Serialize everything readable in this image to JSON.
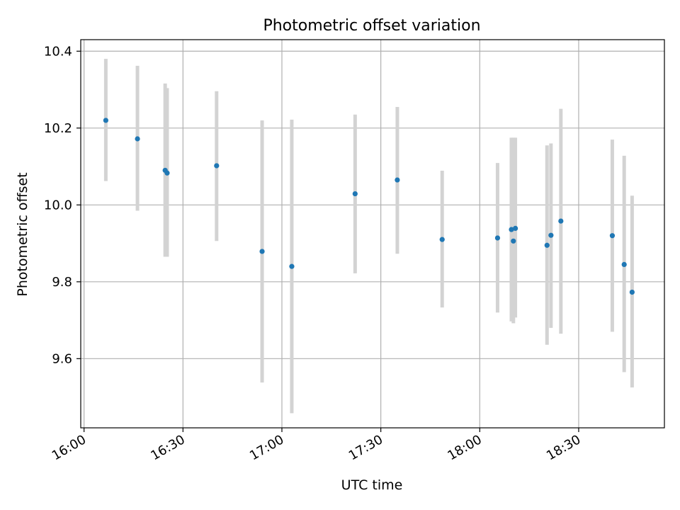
{
  "chart_data": {
    "type": "scatter",
    "title": "Photometric offset variation",
    "xlabel": "UTC time",
    "ylabel": "Photometric offset",
    "x_axis_type": "time",
    "xlim": [
      "15:59",
      "18:56"
    ],
    "ylim": [
      9.42,
      10.43
    ],
    "grid": true,
    "x_ticks": [
      "16:00",
      "16:30",
      "17:00",
      "17:30",
      "18:00",
      "18:30"
    ],
    "y_ticks": [
      9.6,
      9.8,
      10.0,
      10.2,
      10.4
    ],
    "y_tick_labels": [
      "9.6",
      "9.8",
      "10.0",
      "10.2",
      "10.4"
    ],
    "colors": {
      "point": "#1f77b4",
      "errorbar": "#d3d3d3",
      "grid": "#b0b0b0"
    },
    "points": [
      {
        "x": "16:06.6",
        "y": 10.22,
        "err_low": 10.062,
        "err_high": 10.38
      },
      {
        "x": "16:16.2",
        "y": 10.172,
        "err_low": 9.985,
        "err_high": 10.362
      },
      {
        "x": "16:24.6",
        "y": 10.09,
        "err_low": 9.865,
        "err_high": 10.316
      },
      {
        "x": "16:25.2",
        "y": 10.083,
        "err_low": 9.865,
        "err_high": 10.304
      },
      {
        "x": "16:40.2",
        "y": 10.102,
        "err_low": 9.906,
        "err_high": 10.296
      },
      {
        "x": "16:54.0",
        "y": 9.879,
        "err_low": 9.538,
        "err_high": 10.22
      },
      {
        "x": "17:03.0",
        "y": 9.84,
        "err_low": 9.458,
        "err_high": 10.222
      },
      {
        "x": "17:22.2",
        "y": 10.029,
        "err_low": 9.822,
        "err_high": 10.235
      },
      {
        "x": "17:35.0",
        "y": 10.065,
        "err_low": 9.873,
        "err_high": 10.255
      },
      {
        "x": "17:48.6",
        "y": 9.91,
        "err_low": 9.733,
        "err_high": 10.089
      },
      {
        "x": "18:05.4",
        "y": 9.914,
        "err_low": 9.72,
        "err_high": 10.109
      },
      {
        "x": "18:09.6",
        "y": 9.936,
        "err_low": 9.697,
        "err_high": 10.175
      },
      {
        "x": "18:10.2",
        "y": 9.906,
        "err_low": 9.692,
        "err_high": 10.175
      },
      {
        "x": "18:10.8",
        "y": 9.939,
        "err_low": 9.707,
        "err_high": 10.175
      },
      {
        "x": "18:20.4",
        "y": 9.895,
        "err_low": 9.636,
        "err_high": 10.155
      },
      {
        "x": "18:21.6",
        "y": 9.921,
        "err_low": 9.68,
        "err_high": 10.16
      },
      {
        "x": "18:24.6",
        "y": 9.958,
        "err_low": 9.665,
        "err_high": 10.25
      },
      {
        "x": "18:40.2",
        "y": 9.92,
        "err_low": 9.67,
        "err_high": 10.17
      },
      {
        "x": "18:43.8",
        "y": 9.845,
        "err_low": 9.565,
        "err_high": 10.128
      },
      {
        "x": "18:46.2",
        "y": 9.773,
        "err_low": 9.525,
        "err_high": 10.024
      }
    ]
  }
}
